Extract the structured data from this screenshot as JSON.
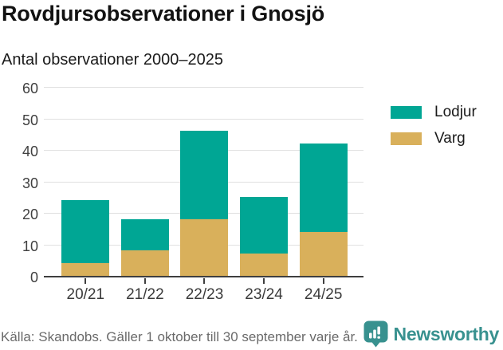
{
  "header": {
    "title": "Rovdjursobservationer i Gnosjö",
    "subtitle": "Antal observationer 2000–2025"
  },
  "chart_data": {
    "type": "bar",
    "stacked": true,
    "title": "Rovdjursobservationer i Gnosjö",
    "subtitle": "Antal observationer 2000–2025",
    "categories": [
      "20/21",
      "21/22",
      "22/23",
      "23/24",
      "24/25"
    ],
    "series": [
      {
        "name": "Lodjur",
        "color": "#00a694",
        "values": [
          20,
          10,
          28,
          18,
          28
        ]
      },
      {
        "name": "Varg",
        "color": "#d9b05b",
        "values": [
          4,
          8,
          18,
          7,
          14
        ]
      }
    ],
    "stack_totals": [
      24,
      18,
      46,
      25,
      42
    ],
    "ylim": [
      0,
      60
    ],
    "yticks": [
      0,
      10,
      20,
      30,
      40,
      50,
      60
    ],
    "xlabel": "",
    "ylabel": "",
    "grid": true,
    "legend_position": "top-right"
  },
  "footer": {
    "source": "Källa: Skandobs. Gäller 1 oktober till 30 september varje år."
  },
  "branding": {
    "name": "Newsworthy",
    "icon": "newsworthy-logo-icon",
    "color": "#38918f"
  }
}
